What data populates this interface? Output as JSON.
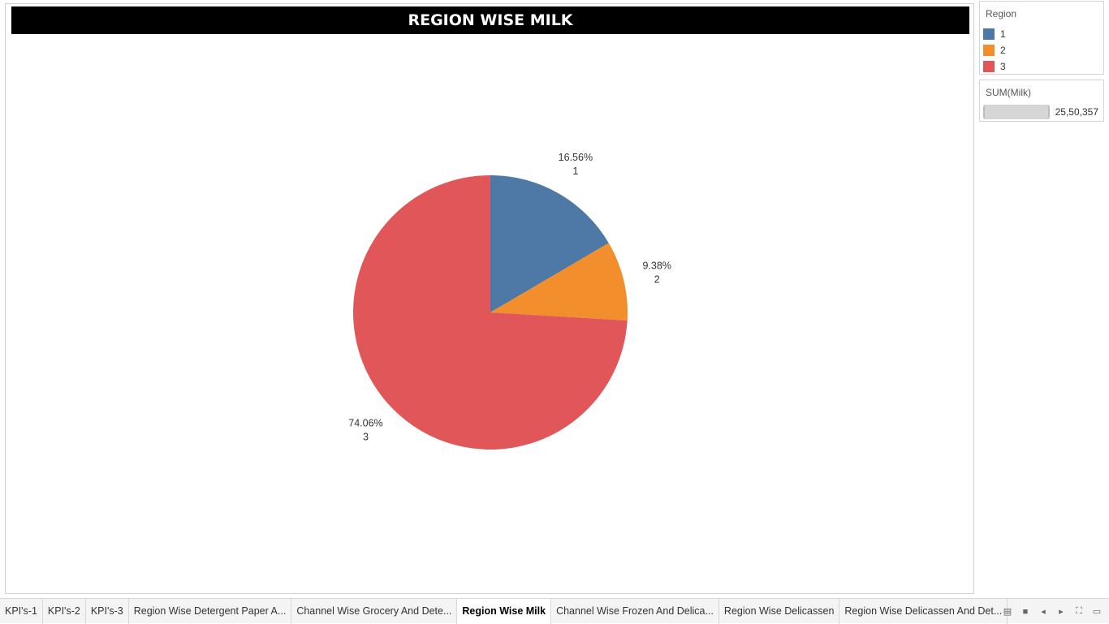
{
  "title": "REGION WISE MILK",
  "chart_data": {
    "type": "pie",
    "measure": "SUM(Milk)",
    "total": "25,50,357",
    "slices": [
      {
        "category": "1",
        "percent": "16.56%",
        "value": 16.56,
        "color": "#4e79a7"
      },
      {
        "category": "2",
        "percent": "9.38%",
        "value": 9.38,
        "color": "#f28e2b"
      },
      {
        "category": "3",
        "percent": "74.06%",
        "value": 74.06,
        "color": "#e15759"
      }
    ],
    "legend": {
      "title": "Region",
      "placement": "right",
      "items": [
        {
          "label": "1",
          "color": "#4e79a7"
        },
        {
          "label": "2",
          "color": "#f28e2b"
        },
        {
          "label": "3",
          "color": "#e15759"
        }
      ]
    }
  },
  "size_legend": {
    "title": "SUM(Milk)",
    "value": "25,50,357"
  },
  "tabs": [
    {
      "label": "KPI's-1",
      "active": false
    },
    {
      "label": "KPI's-2",
      "active": false
    },
    {
      "label": "KPI's-3",
      "active": false
    },
    {
      "label": "Region Wise Detergent Paper A...",
      "active": false
    },
    {
      "label": "Channel Wise Grocery And Dete...",
      "active": false
    },
    {
      "label": "Region Wise Milk",
      "active": true
    },
    {
      "label": "Channel Wise Frozen And Delica...",
      "active": false
    },
    {
      "label": "Region Wise Delicassen",
      "active": false
    },
    {
      "label": "Region Wise Delicassen And Det...",
      "active": false
    }
  ],
  "controls": [
    {
      "name": "show-filmstrip-icon",
      "glyph": "▤"
    },
    {
      "name": "show-tabs-icon",
      "glyph": "■"
    },
    {
      "name": "previous-sheet-icon",
      "glyph": "◂"
    },
    {
      "name": "next-sheet-icon",
      "glyph": "▸"
    },
    {
      "name": "fullscreen-icon",
      "glyph": "⛶"
    },
    {
      "name": "presentation-mode-icon",
      "glyph": "▭"
    }
  ]
}
